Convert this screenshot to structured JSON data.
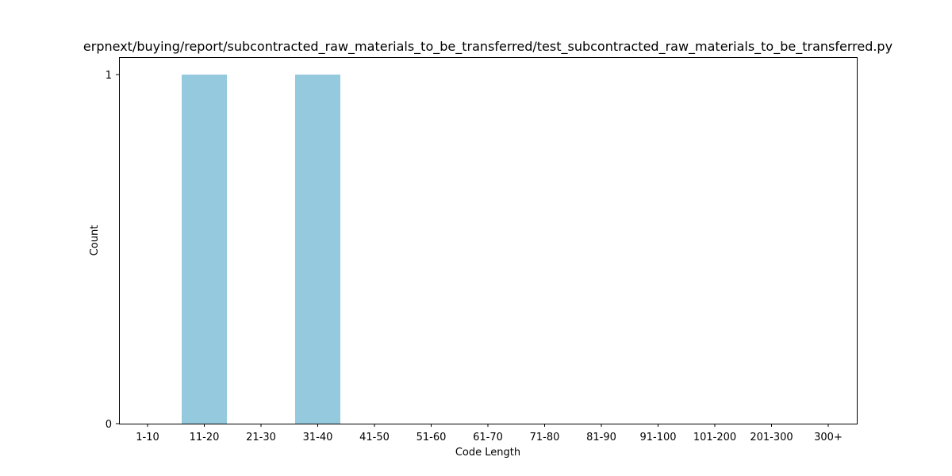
{
  "chart_data": {
    "type": "bar",
    "title": "erpnext/buying/report/subcontracted_raw_materials_to_be_transferred/test_subcontracted_raw_materials_to_be_transferred.py",
    "xlabel": "Code Length",
    "ylabel": "Count",
    "categories": [
      "1-10",
      "11-20",
      "21-30",
      "31-40",
      "41-50",
      "51-60",
      "61-70",
      "71-80",
      "81-90",
      "91-100",
      "101-200",
      "201-300",
      "300+"
    ],
    "values": [
      0,
      1,
      0,
      1,
      0,
      0,
      0,
      0,
      0,
      0,
      0,
      0,
      0
    ],
    "ylim": [
      0,
      1.05
    ],
    "yticks": [
      "0",
      "1"
    ],
    "grid": false,
    "bar_color": "#95c9de"
  }
}
